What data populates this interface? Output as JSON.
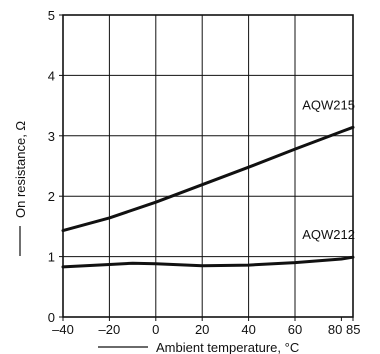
{
  "chart_data": {
    "type": "line",
    "xlabel": "Ambient temperature, °C",
    "ylabel": "On resistance, Ω",
    "xlim": [
      -40,
      85
    ],
    "ylim": [
      0,
      5
    ],
    "x_ticks": [
      -40,
      -20,
      0,
      20,
      40,
      60,
      80,
      85
    ],
    "x_tick_labels": [
      "–40",
      "–20",
      "0",
      "20",
      "40",
      "60",
      "80",
      "85"
    ],
    "y_ticks": [
      0,
      1,
      2,
      3,
      4,
      5
    ],
    "y_tick_labels": [
      "0",
      "1",
      "2",
      "3",
      "4",
      "5"
    ],
    "grid": true,
    "series": [
      {
        "name": "AQW215",
        "x": [
          -40,
          -20,
          0,
          20,
          40,
          60,
          80,
          85
        ],
        "y": [
          1.43,
          1.64,
          1.9,
          2.19,
          2.48,
          2.78,
          3.07,
          3.14
        ]
      },
      {
        "name": "AQW212",
        "x": [
          -40,
          -20,
          -10,
          0,
          20,
          40,
          60,
          80,
          85
        ],
        "y": [
          0.83,
          0.87,
          0.89,
          0.88,
          0.85,
          0.86,
          0.9,
          0.96,
          0.99
        ]
      }
    ],
    "colors": {
      "line": "#111111",
      "background": "#ffffff"
    }
  }
}
